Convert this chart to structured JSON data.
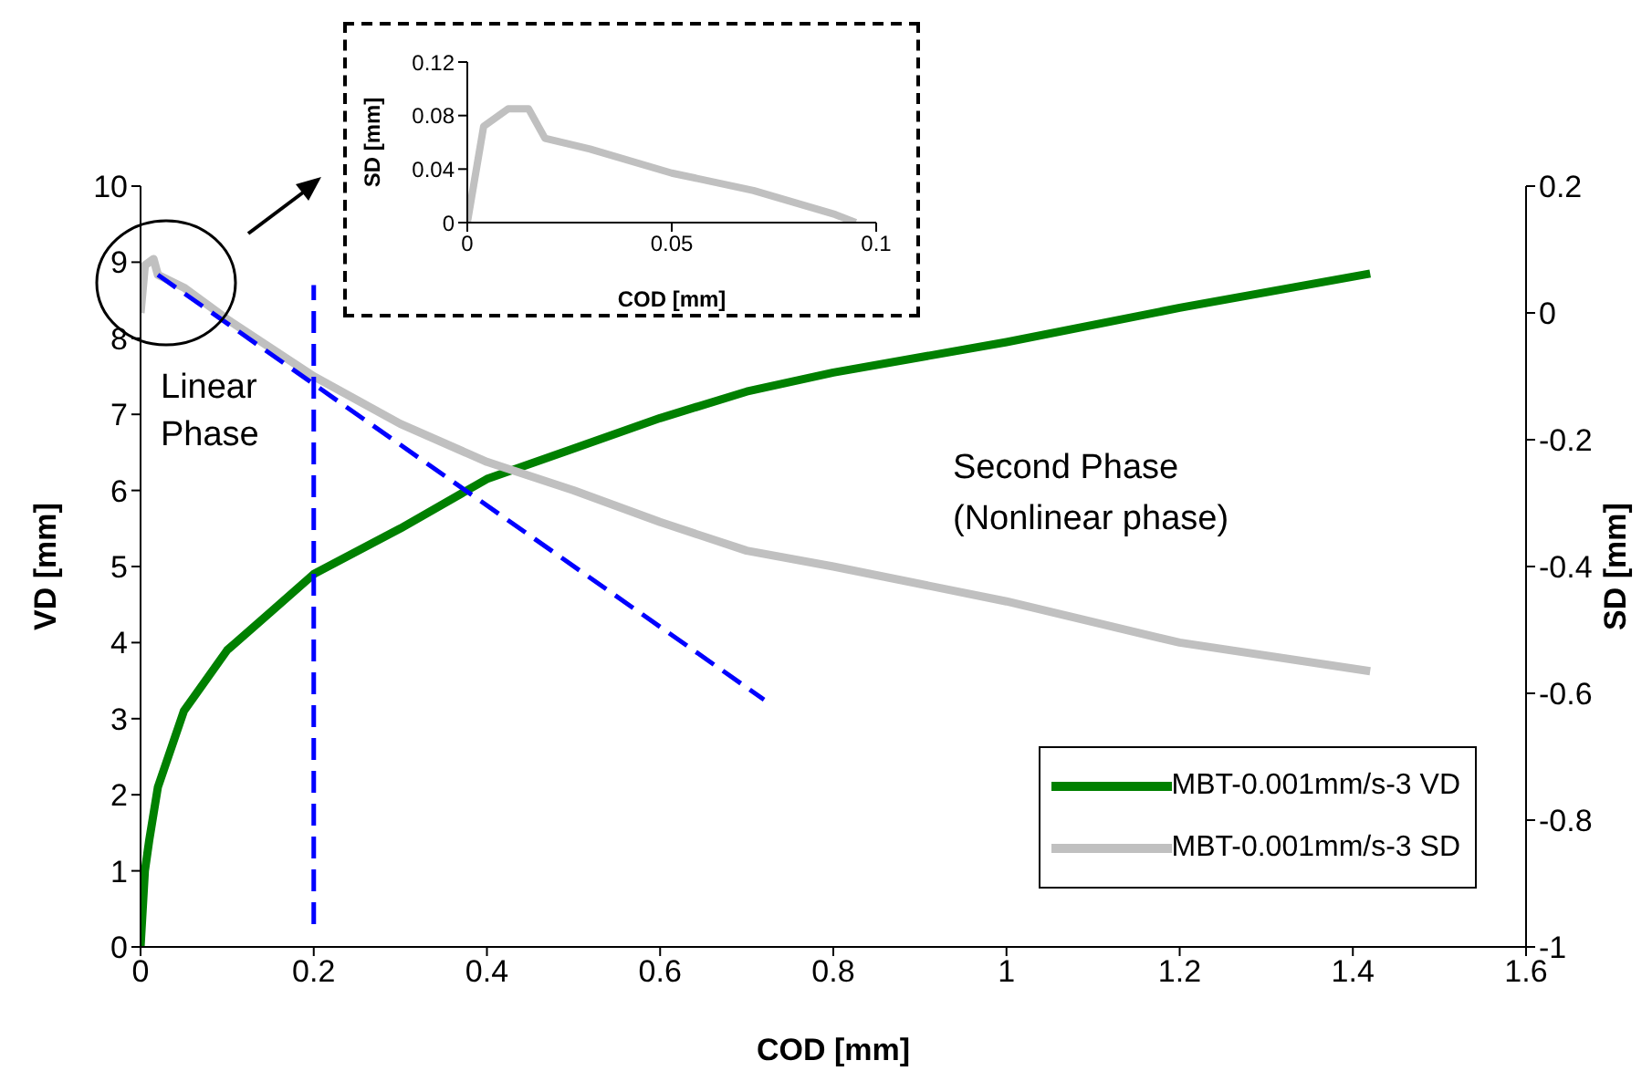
{
  "chart_data": [
    {
      "type": "line",
      "xlabel": "COD [mm]",
      "ylabel": "VD [mm]",
      "y2label": "SD [mm]",
      "xlim": [
        0,
        1.6
      ],
      "xticks": [
        0,
        0.2,
        0.4,
        0.6,
        0.8,
        1,
        1.2,
        1.4,
        1.6
      ],
      "ylim": [
        0,
        10
      ],
      "yticks": [
        0,
        1,
        2,
        3,
        4,
        5,
        6,
        7,
        8,
        9,
        10
      ],
      "y2lim": [
        -1,
        0.2
      ],
      "y2ticks": [
        -1,
        -0.8,
        -0.6,
        -0.4,
        -0.2,
        0,
        0.2
      ],
      "legend": "bottom right",
      "marker": "none",
      "annotations": [
        "Linear Phase",
        "Second Phase (Nonlinear phase)"
      ],
      "series": [
        {
          "name": "MBT-0.001mm/s-3 VD",
          "color": "#008000",
          "x": [
            0,
            0.005,
            0.01,
            0.02,
            0.05,
            0.1,
            0.15,
            0.2,
            0.3,
            0.4,
            0.5,
            0.6,
            0.7,
            0.8,
            1,
            1.2,
            1.42
          ],
          "values": [
            0,
            1,
            1.4,
            2.1,
            3.1,
            3.9,
            4.4,
            4.9,
            5.5,
            6.15,
            6.55,
            6.95,
            7.3,
            7.55,
            7.95,
            8.4,
            8.85
          ]
        },
        {
          "name": "MBT-0.001mm/s-3 SD",
          "color": "#c0c0c0",
          "axis": "y2",
          "x": [
            0,
            0.005,
            0.015,
            0.02,
            0.05,
            0.1,
            0.15,
            0.2,
            0.3,
            0.4,
            0.5,
            0.6,
            0.7,
            0.8,
            1,
            1.2,
            1.42
          ],
          "values": [
            0,
            0.075,
            0.085,
            0.06,
            0.04,
            -0.01,
            -0.055,
            -0.1,
            -0.175,
            -0.235,
            -0.28,
            -0.33,
            -0.375,
            -0.4,
            -0.455,
            -0.52,
            -0.565
          ]
        },
        {
          "type": "line",
          "color": "#0000ff",
          "line_style": "dashed",
          "axis": "y2",
          "x": [
            0.02,
            0.72
          ],
          "values": [
            0.06,
            -0.61
          ]
        },
        {
          "type": "line",
          "color": "#0000ff",
          "line_style": "dashed",
          "x": [
            0.2,
            0.2
          ],
          "values": [
            0.3,
            8.7
          ]
        }
      ]
    },
    {
      "type": "line",
      "xlabel": "COD [mm]",
      "ylabel": "SD [mm]",
      "xlim": [
        0,
        0.1
      ],
      "xticks": [
        0,
        0.05,
        0.1
      ],
      "ylim": [
        0,
        0.12
      ],
      "yticks": [
        0,
        0.04,
        0.08,
        0.12
      ],
      "marker": "none",
      "series": [
        {
          "color": "#c0c0c0",
          "x": [
            0,
            0.004,
            0.01,
            0.015,
            0.019,
            0.03,
            0.05,
            0.07,
            0.09,
            0.095
          ],
          "values": [
            0,
            0.072,
            0.085,
            0.085,
            0.063,
            0.055,
            0.037,
            0.024,
            0.006,
            0
          ]
        }
      ]
    }
  ]
}
